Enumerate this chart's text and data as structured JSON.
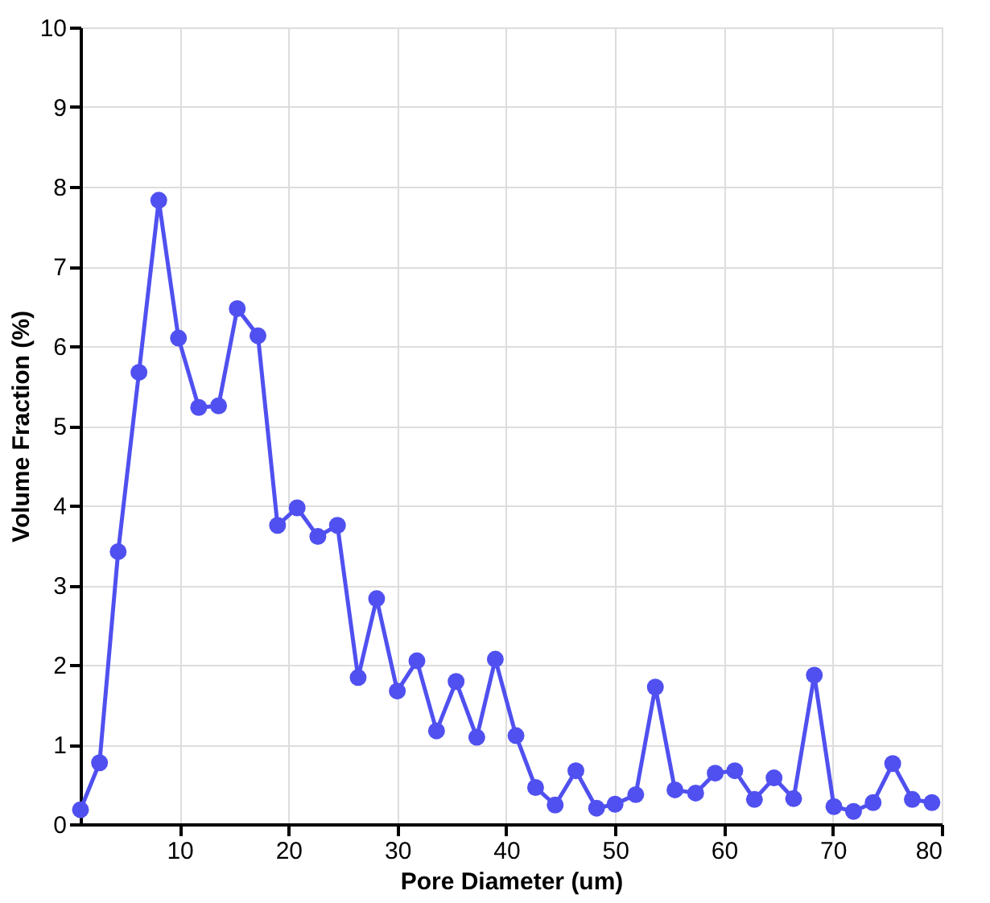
{
  "chart_data": {
    "type": "line",
    "xlabel": "Pore Diameter (um)",
    "ylabel": "Volume Fraction (%)",
    "x": [
      0.9,
      2.65,
      4.36,
      6.27,
      8.09,
      9.9,
      11.76,
      13.58,
      15.3,
      17.2,
      19.0,
      20.8,
      22.7,
      24.5,
      26.4,
      28.1,
      30.0,
      31.8,
      33.6,
      35.4,
      37.3,
      39.0,
      40.9,
      42.7,
      44.5,
      46.4,
      48.3,
      50.0,
      51.9,
      53.7,
      55.5,
      57.4,
      59.2,
      61.0,
      62.8,
      64.6,
      66.4,
      68.3,
      70.1,
      71.9,
      73.7,
      75.5,
      77.3,
      79.1
    ],
    "series": [
      {
        "color": "#5050f0",
        "values": [
          0.18,
          0.77,
          3.42,
          5.67,
          7.83,
          6.1,
          5.23,
          5.25,
          6.47,
          6.13,
          3.75,
          3.97,
          3.61,
          3.75,
          1.84,
          2.83,
          1.67,
          2.05,
          1.17,
          1.79,
          1.09,
          2.07,
          1.11,
          0.46,
          0.24,
          0.67,
          0.2,
          0.25,
          0.37,
          1.72,
          0.43,
          0.39,
          0.64,
          0.67,
          0.31,
          0.58,
          0.32,
          1.87,
          0.22,
          0.16,
          0.27,
          0.76,
          0.31,
          0.27
        ]
      }
    ],
    "xlim": [
      0.9,
      80
    ],
    "xticks": [
      10,
      20,
      30,
      40,
      50,
      60,
      70,
      80
    ],
    "ylim": [
      0,
      10
    ],
    "yticks": [
      0,
      1,
      2,
      3,
      4,
      5,
      6,
      7,
      8,
      9,
      10
    ],
    "grid": true,
    "marker": "circle",
    "line_style": "solid"
  }
}
